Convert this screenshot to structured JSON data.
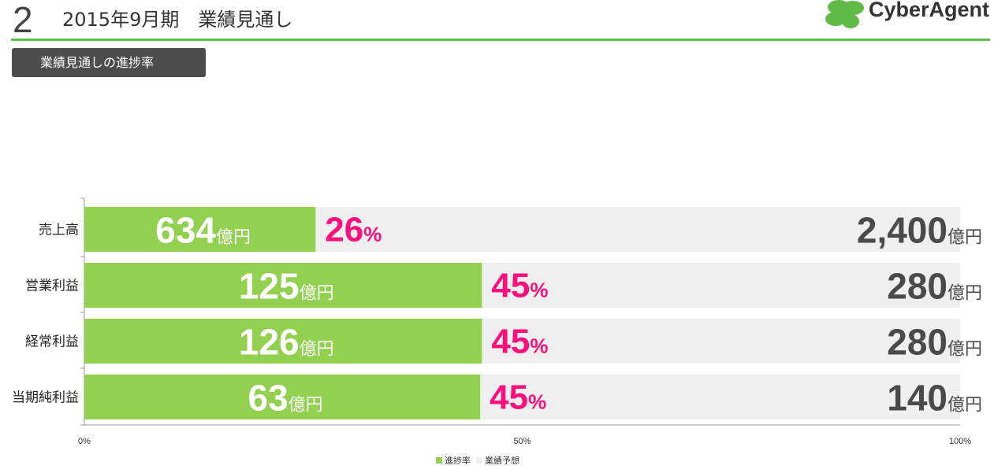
{
  "header": {
    "page_number": "2",
    "title": "2015年9月期　業績見通し",
    "logo_text": "CyberAgent"
  },
  "section": {
    "label": "業績見通しの進捗率"
  },
  "colors": {
    "accent_green": "#92d050",
    "header_rule": "#5fba46",
    "forecast_gray": "#efefef",
    "percent_pink": "#ff0f7b",
    "forecast_text": "#4a4a4a",
    "tab_bg": "#4d4d4d"
  },
  "chart_data": {
    "type": "bar",
    "orientation": "horizontal",
    "categories": [
      "売上高",
      "営業利益",
      "経常利益",
      "当期純利益"
    ],
    "series": [
      {
        "name": "進捗率",
        "values": [
          26.4,
          45.4,
          45.4,
          45.2
        ]
      },
      {
        "name": "業績予想",
        "values": [
          100,
          100,
          100,
          100
        ]
      }
    ],
    "progress_labels": [
      {
        "amount": "634",
        "unit": "億円"
      },
      {
        "amount": "125",
        "unit": "億円"
      },
      {
        "amount": "126",
        "unit": "億円"
      },
      {
        "amount": "63",
        "unit": "億円"
      }
    ],
    "percent_labels": [
      {
        "value": "26",
        "unit": "%"
      },
      {
        "value": "45",
        "unit": "%"
      },
      {
        "value": "45",
        "unit": "%"
      },
      {
        "value": "45",
        "unit": "%"
      }
    ],
    "forecast_labels": [
      {
        "amount": "2,400",
        "unit": "億円"
      },
      {
        "amount": "280",
        "unit": "億円"
      },
      {
        "amount": "280",
        "unit": "億円"
      },
      {
        "amount": "140",
        "unit": "億円"
      }
    ],
    "xticks": [
      "0%",
      "50%",
      "100%"
    ],
    "xlim": [
      0,
      100
    ],
    "grid": false,
    "legend_position": "bottom"
  },
  "legend": {
    "items": [
      {
        "label": "進捗率",
        "color": "#92d050"
      },
      {
        "label": "業績予想",
        "color": "#efefef"
      }
    ]
  }
}
